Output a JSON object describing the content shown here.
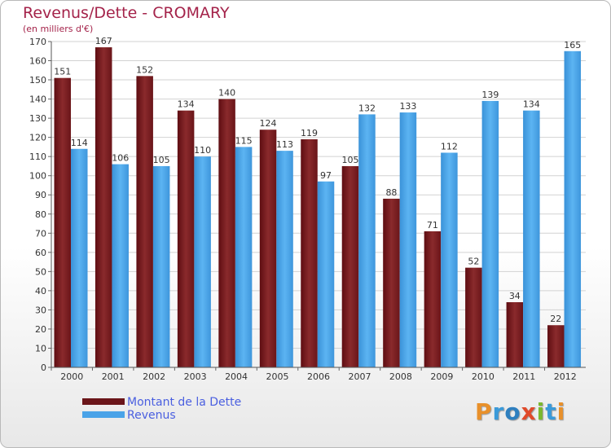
{
  "chart_data": {
    "type": "bar",
    "title": "Revenus/Dette - CROMARY",
    "subtitle": "(en milliers d'€)",
    "categories": [
      "2000",
      "2001",
      "2002",
      "2003",
      "2004",
      "2005",
      "2006",
      "2007",
      "2008",
      "2009",
      "2010",
      "2011",
      "2012"
    ],
    "series": [
      {
        "name": "Montant de la Dette",
        "color": "#7a1c20",
        "values": [
          151,
          167,
          152,
          134,
          140,
          124,
          119,
          105,
          88,
          71,
          52,
          34,
          22
        ]
      },
      {
        "name": "Revenus",
        "color": "#4aa3e8",
        "values": [
          114,
          106,
          105,
          110,
          115,
          113,
          97,
          132,
          133,
          112,
          139,
          134,
          165
        ]
      }
    ],
    "ylim": [
      0,
      170
    ],
    "yticks": [
      0,
      10,
      20,
      30,
      40,
      50,
      60,
      70,
      80,
      90,
      100,
      110,
      120,
      130,
      140,
      150,
      160,
      170
    ],
    "grid": true,
    "legend_position": "bottom-left"
  },
  "logo": {
    "letters": [
      {
        "ch": "P",
        "color": "#e8902a"
      },
      {
        "ch": "r",
        "color": "#3a9ad9"
      },
      {
        "ch": "o",
        "color": "#2e7fbf"
      },
      {
        "ch": "x",
        "color": "#e04a2a"
      },
      {
        "ch": "i",
        "color": "#7ab82e"
      },
      {
        "ch": "t",
        "color": "#3a9ad9"
      },
      {
        "ch": "i",
        "color": "#e8902a"
      }
    ]
  }
}
